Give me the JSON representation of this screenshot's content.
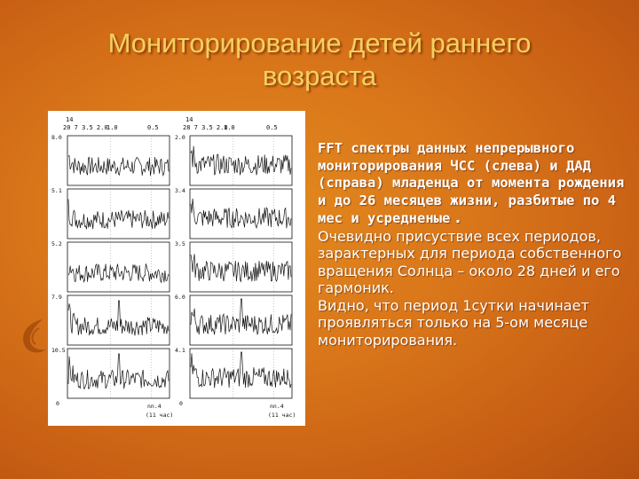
{
  "slide": {
    "title_line1": "Мониторирование детей раннего",
    "title_line2": "возраста"
  },
  "figure": {
    "left": {
      "panel_label": "14",
      "period_ticks": "20 7 3.5 2.0",
      "tick_1": "1.0",
      "tick_2": "0.5",
      "scales": [
        "8.0",
        "5.1",
        "5.2",
        "7.9",
        "10.5"
      ],
      "zero": "0",
      "subject": "nn.4",
      "note": "(11 час)"
    },
    "right": {
      "panel_label": "14",
      "period_ticks": "28 7 3.5 2.0",
      "tick_1": "1.0",
      "tick_2": "0.5",
      "scales": [
        "2.0",
        "3.4",
        "3.5",
        "6.0",
        "4.1"
      ],
      "zero": "0",
      "subject": "nn.4",
      "note": "(11 час)"
    }
  },
  "body": {
    "bold_text": "FFT спектры  данных непрерывного мониторирования  ЧСС (слева) и ДАД (справа) младенца от момента рождения и до 26 месяцев жизни, разбитые по 4 мес и усредненые",
    "bold_tail": " .",
    "para2": "Очевидно присуствие всех периодов, зарактерных для периода собственного вращения Солнца – около 28 дней и его гармоник.",
    "para3": "Видно, что период  1сутки начинает проявляться только на 5-ом месяце мониторирования."
  },
  "colors": {
    "background": "#d9761a",
    "title": "#f5d060",
    "text": "#ffffff",
    "plot_ink": "#111111"
  }
}
